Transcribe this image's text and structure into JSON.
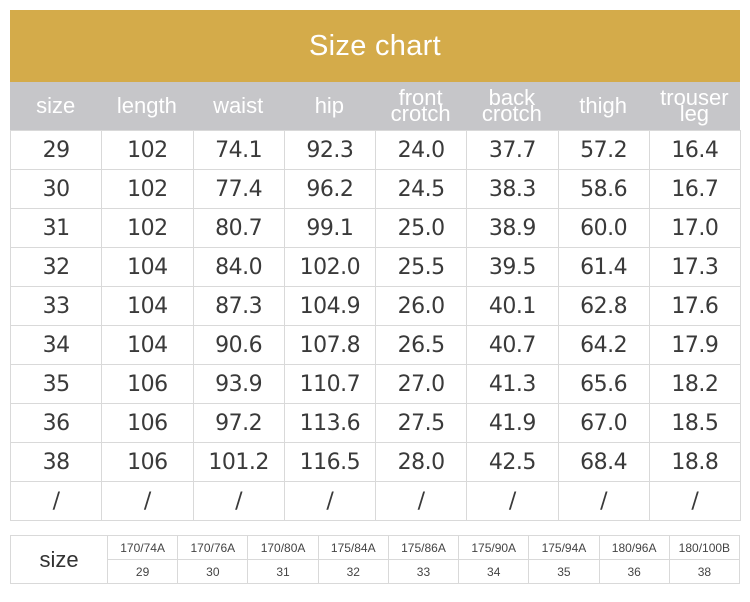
{
  "title": "Size chart",
  "headers": [
    "size",
    "length",
    "waist",
    "hip",
    "front\ncrotch",
    "back\ncrotch",
    "thigh",
    "trouser\nleg"
  ],
  "rows": [
    [
      "29",
      "102",
      "74.1",
      "92.3",
      "24.0",
      "37.7",
      "57.2",
      "16.4"
    ],
    [
      "30",
      "102",
      "77.4",
      "96.2",
      "24.5",
      "38.3",
      "58.6",
      "16.7"
    ],
    [
      "31",
      "102",
      "80.7",
      "99.1",
      "25.0",
      "38.9",
      "60.0",
      "17.0"
    ],
    [
      "32",
      "104",
      "84.0",
      "102.0",
      "25.5",
      "39.5",
      "61.4",
      "17.3"
    ],
    [
      "33",
      "104",
      "87.3",
      "104.9",
      "26.0",
      "40.1",
      "62.8",
      "17.6"
    ],
    [
      "34",
      "104",
      "90.6",
      "107.8",
      "26.5",
      "40.7",
      "64.2",
      "17.9"
    ],
    [
      "35",
      "106",
      "93.9",
      "110.7",
      "27.0",
      "41.3",
      "65.6",
      "18.2"
    ],
    [
      "36",
      "106",
      "97.2",
      "113.6",
      "27.5",
      "41.9",
      "67.0",
      "18.5"
    ],
    [
      "38",
      "106",
      "101.2",
      "116.5",
      "28.0",
      "42.5",
      "68.4",
      "18.8"
    ],
    [
      "/",
      "/",
      "/",
      "/",
      "/",
      "/",
      "/",
      "/"
    ]
  ],
  "size_map": {
    "label": "size",
    "codes": [
      "170/74A",
      "170/76A",
      "170/80A",
      "175/84A",
      "175/86A",
      "175/90A",
      "175/94A",
      "180/96A",
      "180/100B"
    ],
    "sizes": [
      "29",
      "30",
      "31",
      "32",
      "33",
      "34",
      "35",
      "36",
      "38"
    ]
  },
  "colors": {
    "title_bg": "#d4ab4a",
    "header_bg": "#c6c6c9",
    "border": "#d9d9d9"
  }
}
